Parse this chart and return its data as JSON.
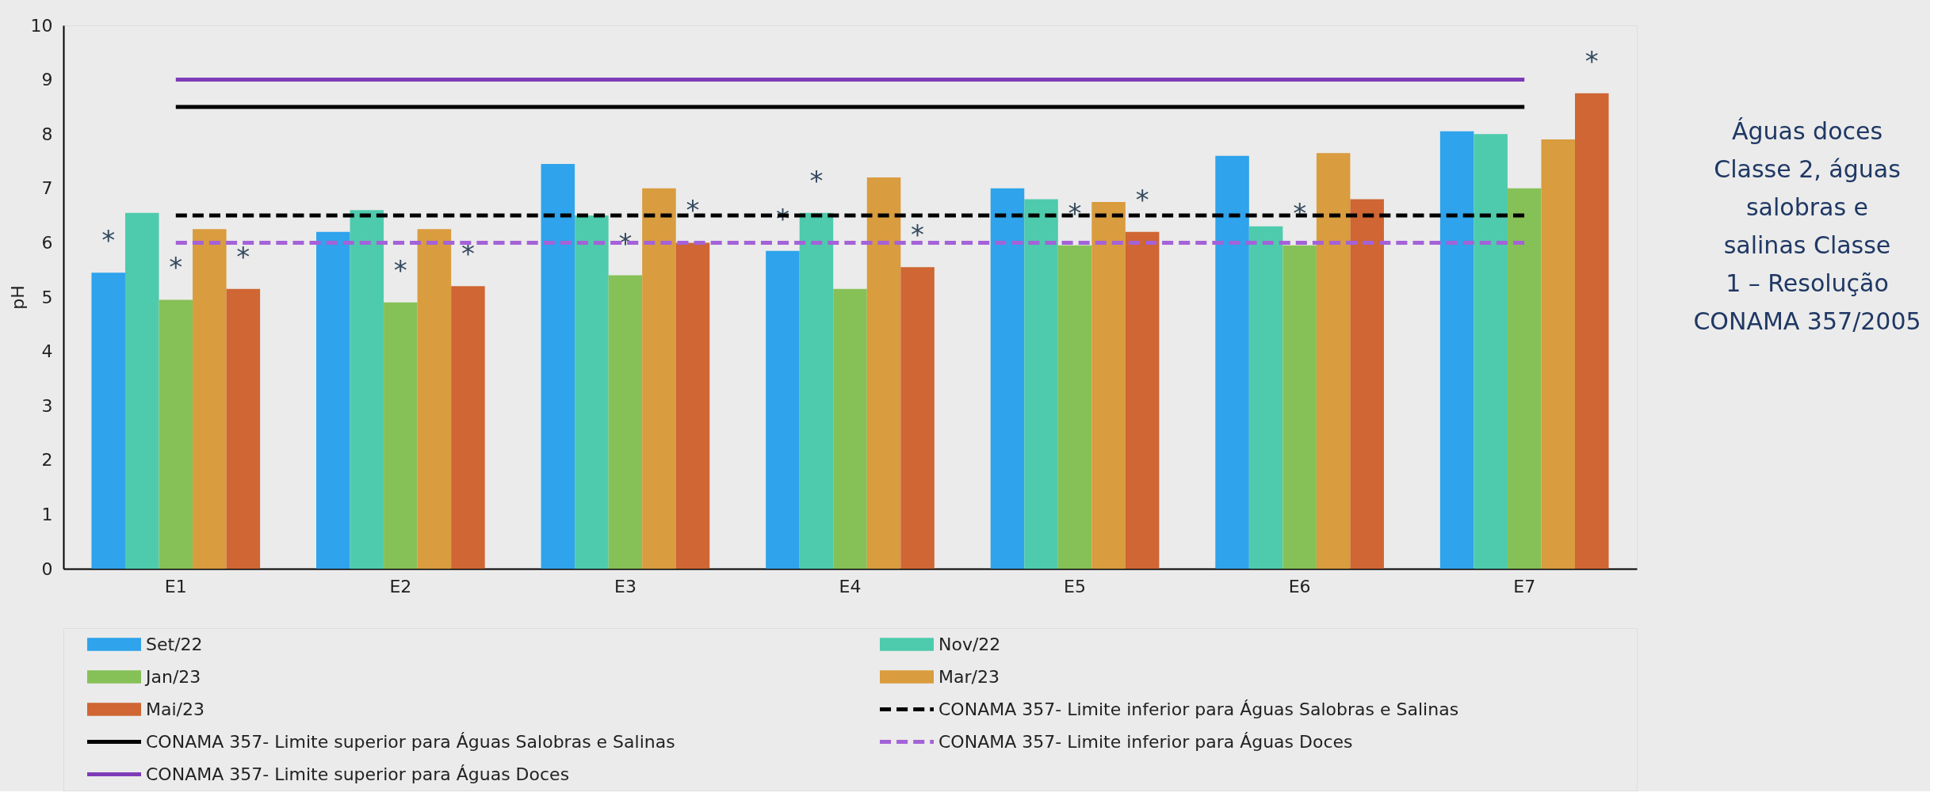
{
  "chart_data": {
    "type": "bar",
    "ylabel": "pH",
    "categories": [
      "E1",
      "E2",
      "E3",
      "E4",
      "E5",
      "E6",
      "E7"
    ],
    "series": [
      {
        "name": "Set/22",
        "color": "#2fa3ec",
        "values": [
          5.45,
          6.2,
          7.45,
          5.85,
          7.0,
          7.6,
          8.05
        ],
        "value_labels": [
          "*",
          null,
          null,
          "*",
          null,
          null,
          null
        ]
      },
      {
        "name": "Nov/22",
        "color": "#4ecbad",
        "values": [
          6.55,
          6.6,
          6.5,
          6.55,
          6.8,
          6.3,
          8.0
        ],
        "value_labels": [
          null,
          null,
          null,
          "*",
          null,
          null,
          null
        ]
      },
      {
        "name": "Jan/23",
        "color": "#86c157",
        "values": [
          4.95,
          4.9,
          5.4,
          5.15,
          5.95,
          5.95,
          7.0
        ],
        "value_labels": [
          "*",
          "*",
          "*",
          null,
          "*",
          "*",
          null
        ]
      },
      {
        "name": "Mar/23",
        "color": "#d99c3e",
        "values": [
          6.25,
          6.25,
          7.0,
          7.2,
          6.75,
          7.65,
          7.9
        ],
        "value_labels": [
          null,
          null,
          null,
          null,
          null,
          null,
          null
        ]
      },
      {
        "name": "Mai/23",
        "color": "#cf6633",
        "values": [
          5.15,
          5.2,
          6.0,
          5.55,
          6.2,
          6.8,
          8.75
        ],
        "value_labels": [
          "*",
          "*",
          "*",
          "*",
          "*",
          null,
          "*"
        ]
      },
      {
        "name": "CONAMA 357- Limite inferior para Águas Salobras e Salinas",
        "type": "line",
        "line_style": "dashed",
        "color": "#000000",
        "values": [
          6.5,
          6.5,
          6.5,
          6.5,
          6.5,
          6.5,
          6.5
        ]
      },
      {
        "name": "CONAMA 357- Limite superior para Águas Salobras e Salinas",
        "type": "line",
        "line_style": "solid",
        "color": "#000000",
        "values": [
          8.5,
          8.5,
          8.5,
          8.5,
          8.5,
          8.5,
          8.5
        ]
      },
      {
        "name": "CONAMA 357- Limite inferior para Águas Doces",
        "type": "line",
        "line_style": "dashed",
        "color": "#a462d8",
        "values": [
          6,
          6,
          6,
          6,
          6,
          6,
          6
        ]
      },
      {
        "name": "CONAMA 357- Limite superior para Águas Doces",
        "type": "line",
        "line_style": "solid",
        "color": "#7e3bb8",
        "values": [
          9,
          9,
          9,
          9,
          9,
          9,
          9
        ]
      }
    ],
    "ylim": [
      0,
      10
    ],
    "yticks": [
      0,
      1,
      2,
      3,
      4,
      5,
      6,
      7,
      8,
      9,
      10
    ],
    "grid": false,
    "legend": "bottom",
    "annotations": [
      "Águas doces Classe 2, águas salobras e salinas Classe 1 – Resolução CONAMA 357/2005"
    ]
  }
}
